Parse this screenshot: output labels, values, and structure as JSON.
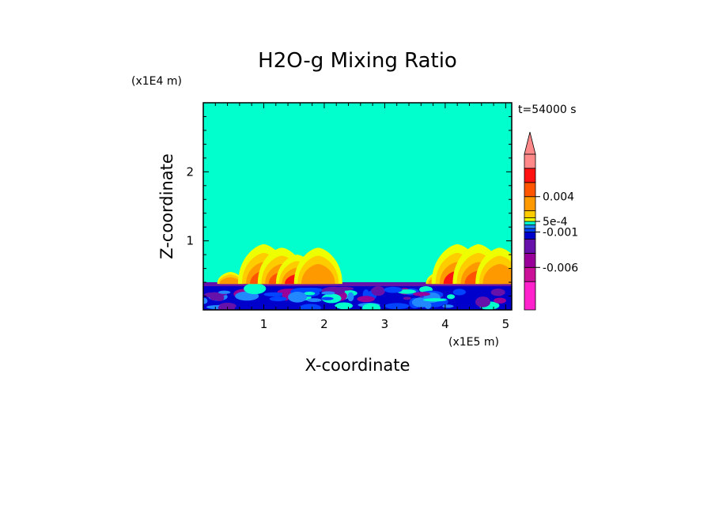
{
  "chart_data": {
    "type": "heatmap",
    "title": "H2O-g Mixing Ratio",
    "time_label": "t=54000 s",
    "xlabel": "X-coordinate",
    "ylabel": "Z-coordinate",
    "x_unit": "(x1E5 m)",
    "y_unit": "(x1E4 m)",
    "xlim": [
      0,
      5.1
    ],
    "ylim": [
      0,
      3.0
    ],
    "xticks": [
      "1",
      "2",
      "3",
      "4",
      "5"
    ],
    "xtick_values": [
      1,
      2,
      3,
      4,
      5
    ],
    "yticks": [
      "1",
      "2"
    ],
    "ytick_values": [
      1,
      2
    ],
    "background_level": 0.0,
    "boundary_layer_top": 0.4,
    "colorbar": {
      "levels": [
        -0.01,
        -0.008,
        -0.006,
        -0.004,
        -0.002,
        -0.001,
        -0.0005,
        0.0,
        0.0005,
        0.001,
        0.002,
        0.004,
        0.006,
        0.008
      ],
      "colors": [
        "#ff22cc",
        "#cc1199",
        "#990099",
        "#6611aa",
        "#0000cc",
        "#0044ff",
        "#2288ff",
        "#00ffcc",
        "#eeff00",
        "#ffcc00",
        "#ff9900",
        "#ff5500",
        "#ff1111",
        "#ff8888"
      ],
      "labels": [
        {
          "text": "0.004",
          "value": 0.004
        },
        {
          "text": "5e-4",
          "value": 0.0005
        },
        {
          "text": "-0.001",
          "value": -0.001
        },
        {
          "text": "-0.006",
          "value": -0.006
        }
      ]
    },
    "plumes": [
      {
        "x": 0.45,
        "z_top": 0.55,
        "intensity": 0.002
      },
      {
        "x": 1.0,
        "z_top": 0.95,
        "intensity": 0.005
      },
      {
        "x": 1.3,
        "z_top": 0.9,
        "intensity": 0.004
      },
      {
        "x": 1.55,
        "z_top": 0.8,
        "intensity": 0.006
      },
      {
        "x": 1.9,
        "z_top": 0.9,
        "intensity": 0.002
      },
      {
        "x": 3.9,
        "z_top": 0.55,
        "intensity": 0.002
      },
      {
        "x": 4.2,
        "z_top": 0.95,
        "intensity": 0.006
      },
      {
        "x": 4.55,
        "z_top": 0.95,
        "intensity": 0.004
      },
      {
        "x": 4.9,
        "z_top": 0.9,
        "intensity": 0.002
      }
    ]
  }
}
